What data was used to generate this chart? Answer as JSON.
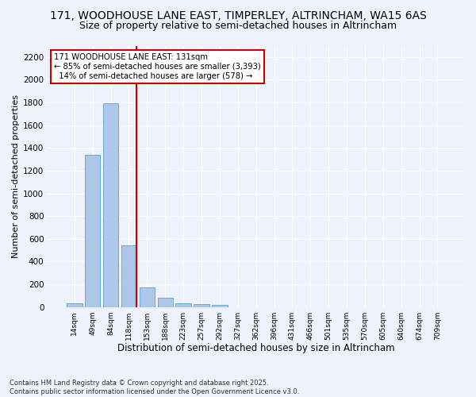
{
  "title": "171, WOODHOUSE LANE EAST, TIMPERLEY, ALTRINCHAM, WA15 6AS",
  "subtitle": "Size of property relative to semi-detached houses in Altrincham",
  "xlabel": "Distribution of semi-detached houses by size in Altrincham",
  "ylabel": "Number of semi-detached properties",
  "categories": [
    "14sqm",
    "49sqm",
    "84sqm",
    "118sqm",
    "153sqm",
    "188sqm",
    "223sqm",
    "257sqm",
    "292sqm",
    "327sqm",
    "362sqm",
    "396sqm",
    "431sqm",
    "466sqm",
    "501sqm",
    "535sqm",
    "570sqm",
    "605sqm",
    "640sqm",
    "674sqm",
    "709sqm"
  ],
  "values": [
    30,
    1340,
    1790,
    540,
    175,
    80,
    35,
    28,
    20,
    0,
    0,
    0,
    0,
    0,
    0,
    0,
    0,
    0,
    0,
    0,
    0
  ],
  "bar_color": "#aec6e8",
  "bar_edge_color": "#5a9fd4",
  "red_line_x": 3.42,
  "annotation_text": "171 WOODHOUSE LANE EAST: 131sqm\n← 85% of semi-detached houses are smaller (3,393)\n  14% of semi-detached houses are larger (578) →",
  "annotation_box_color": "#ffffff",
  "annotation_box_edge_color": "#cc0000",
  "red_line_color": "#cc0000",
  "ylim": [
    0,
    2300
  ],
  "yticks": [
    0,
    200,
    400,
    600,
    800,
    1000,
    1200,
    1400,
    1600,
    1800,
    2000,
    2200
  ],
  "background_color": "#eef2fa",
  "grid_color": "#ffffff",
  "footer": "Contains HM Land Registry data © Crown copyright and database right 2025.\nContains public sector information licensed under the Open Government Licence v3.0.",
  "title_fontsize": 10,
  "subtitle_fontsize": 9,
  "xlabel_fontsize": 8.5,
  "ylabel_fontsize": 8
}
